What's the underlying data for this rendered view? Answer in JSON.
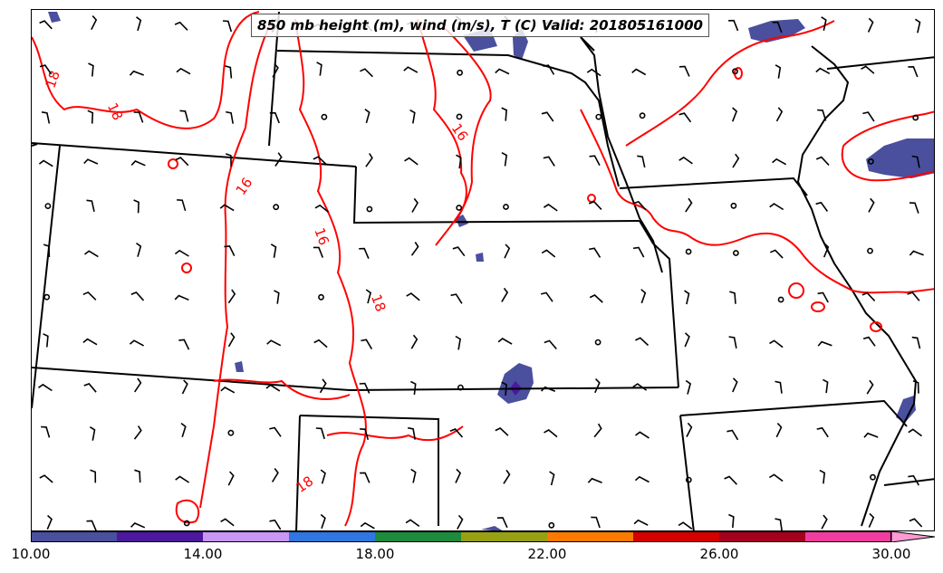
{
  "title": "850 mb height (m), wind (m/s), T (C) Valid: 201805161000",
  "contour_labels": [
    "18",
    "18",
    "16",
    "16",
    "16",
    "18",
    "18"
  ],
  "colorbar": {
    "colors": [
      "#4a4f9e",
      "#4b189e",
      "#c896f5",
      "#2f76e0",
      "#1e8a3c",
      "#97a012",
      "#fc7a00",
      "#d40000",
      "#a5001e",
      "#f03c9e",
      "#ff9ad2"
    ],
    "tick_labels": [
      "10.00",
      "14.00",
      "18.00",
      "22.00",
      "26.00",
      "30.00"
    ],
    "range": [
      10,
      30
    ],
    "extend": "max"
  },
  "styles": {
    "contour_color": "#ff0000",
    "border_color": "#000000",
    "fill_color": "#4a4f9e"
  }
}
